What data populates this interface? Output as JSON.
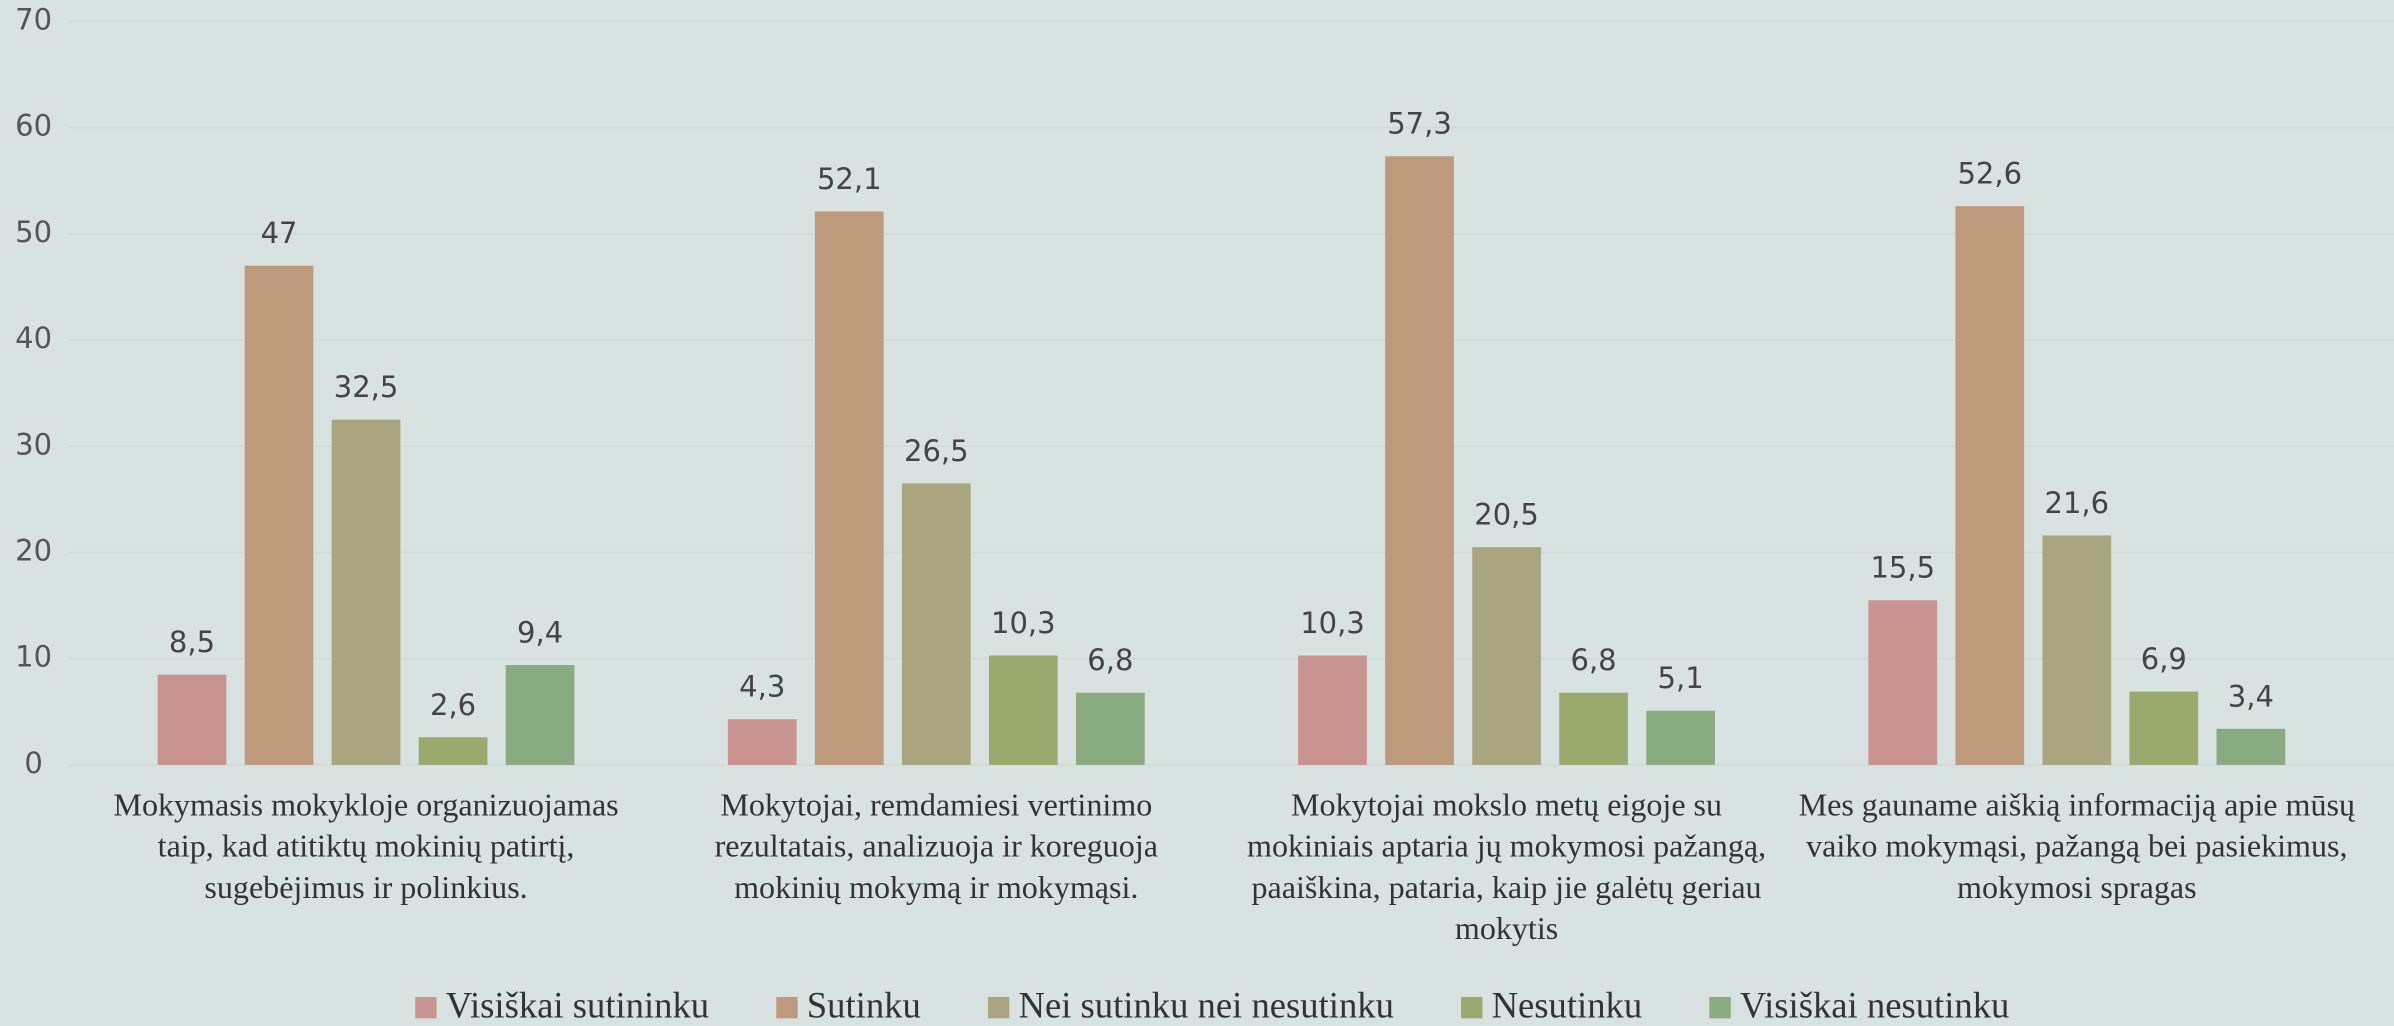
{
  "chart_data": {
    "type": "bar",
    "categories": [
      "Mokymasis mokykloje organizuojamas taip, kad atitiktų mokinių patirtį, sugebėjimus ir polinkius.",
      "Mokytojai, remdamiesi vertinimo rezultatais, analizuoja ir koreguoja mokinių mokymą ir mokymąsi.",
      "Mokytojai mokslo metų eigoje su mokiniais aptaria jų mokymosi pažangą, paaiškina, pataria, kaip jie galėtų geriau mokytis",
      "Mes gauname aiškią informaciją apie mūsų vaiko mokymąsi, pažangą bei pasiekimus, mokymosi spragas"
    ],
    "series": [
      {
        "name": "Visiškai sutininku",
        "color": "#c9938f",
        "values": [
          8.5,
          4.3,
          10.3,
          15.5
        ],
        "value_labels": [
          "8,5",
          "4,3",
          "10,3",
          "15,5"
        ]
      },
      {
        "name": "Sutinku",
        "color": "#bd9a7c",
        "values": [
          47,
          52.1,
          57.3,
          52.6
        ],
        "value_labels": [
          "47",
          "52,1",
          "57,3",
          "52,6"
        ]
      },
      {
        "name": "Nei sutinku nei nesutinku",
        "color": "#a9a67f",
        "values": [
          32.5,
          26.5,
          20.5,
          21.6
        ],
        "value_labels": [
          "32,5",
          "26,5",
          "20,5",
          "21,6"
        ]
      },
      {
        "name": "Nesutinku",
        "color": "#9aaa6e",
        "values": [
          2.6,
          10.3,
          6.8,
          6.9
        ],
        "value_labels": [
          "2,6",
          "10,3",
          "6,8",
          "6,9"
        ]
      },
      {
        "name": "Visiškai nesutinku",
        "color": "#8aaa80",
        "values": [
          9.4,
          6.8,
          5.1,
          3.4
        ],
        "value_labels": [
          "9,4",
          "6,8",
          "5,1",
          "3,4"
        ]
      }
    ],
    "ylim": [
      0,
      70
    ],
    "yticks": [
      0,
      10,
      20,
      30,
      40,
      50,
      60,
      70
    ],
    "grid": true,
    "legend": "bottom"
  }
}
